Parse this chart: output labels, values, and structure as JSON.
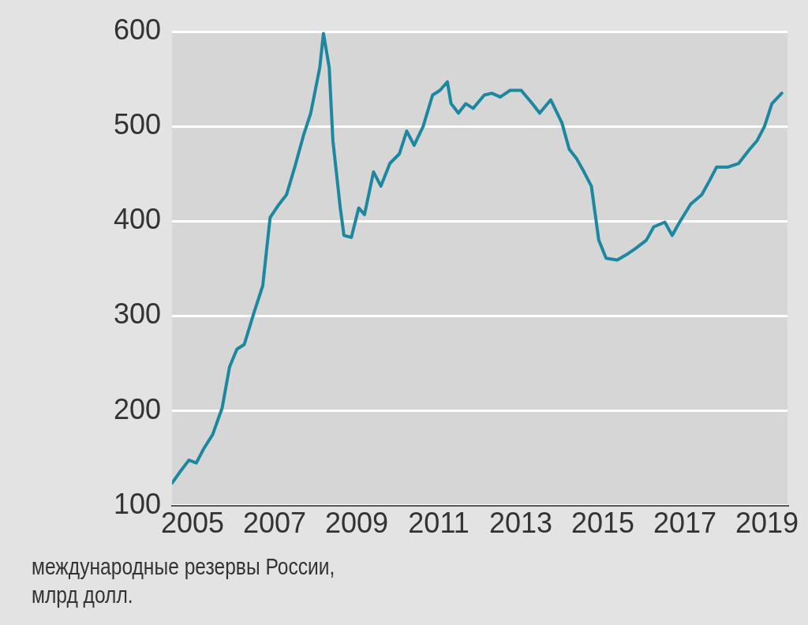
{
  "chart_data": {
    "type": "line",
    "x": [
      2005.0,
      2005.2,
      2005.41,
      2005.59,
      2005.77,
      2005.99,
      2006.22,
      2006.4,
      2006.58,
      2006.76,
      2007.0,
      2007.21,
      2007.39,
      2007.61,
      2007.79,
      2007.99,
      2008.2,
      2008.38,
      2008.6,
      2008.69,
      2008.83,
      2008.92,
      2009.1,
      2009.19,
      2009.37,
      2009.55,
      2009.69,
      2009.91,
      2010.09,
      2010.31,
      2010.54,
      2010.72,
      2010.9,
      2011.12,
      2011.35,
      2011.53,
      2011.71,
      2011.8,
      2011.98,
      2012.16,
      2012.34,
      2012.61,
      2012.79,
      2013.0,
      2013.24,
      2013.51,
      2013.78,
      2013.96,
      2014.23,
      2014.5,
      2014.68,
      2014.86,
      2015.04,
      2015.22,
      2015.4,
      2015.58,
      2015.85,
      2016.12,
      2016.29,
      2016.56,
      2016.74,
      2017.01,
      2017.19,
      2017.37,
      2017.64,
      2017.91,
      2018.09,
      2018.27,
      2018.54,
      2018.81,
      2019.08,
      2019.26,
      2019.44,
      2019.62,
      2019.86
    ],
    "series": [
      {
        "color": "#1c88a0",
        "values": [
          124,
          136,
          148,
          145,
          160,
          175,
          203,
          246,
          265,
          270,
          304,
          332,
          404,
          418,
          428,
          457,
          490,
          514,
          562,
          598,
          562,
          485,
          414,
          385,
          383,
          414,
          407,
          452,
          437,
          461,
          471,
          495,
          480,
          500,
          533,
          538,
          547,
          524,
          514,
          524,
          519,
          533,
          535,
          531,
          538,
          538,
          524,
          514,
          528,
          504,
          476,
          466,
          452,
          437,
          380,
          361,
          359,
          366,
          371,
          380,
          394,
          399,
          385,
          399,
          418,
          428,
          442,
          457,
          457,
          461,
          476,
          485,
          500,
          524,
          535
        ]
      }
    ],
    "xlim": [
      2005,
      2020
    ],
    "ylim": [
      100,
      600
    ],
    "xticks": [
      {
        "value": 2005.5,
        "label": "2005"
      },
      {
        "value": 2007.5,
        "label": "2007"
      },
      {
        "value": 2009.5,
        "label": "2009"
      },
      {
        "value": 2011.5,
        "label": "2011"
      },
      {
        "value": 2013.5,
        "label": "2013"
      },
      {
        "value": 2015.5,
        "label": "2015"
      },
      {
        "value": 2017.5,
        "label": "2017"
      },
      {
        "value": 2019.5,
        "label": "2019"
      }
    ],
    "yticks": [
      100,
      200,
      300,
      400,
      500,
      600
    ],
    "grid": "y",
    "marker": "none",
    "line_style": "solid",
    "annotations": [
      "международные резервы России, млрд долл."
    ]
  }
}
